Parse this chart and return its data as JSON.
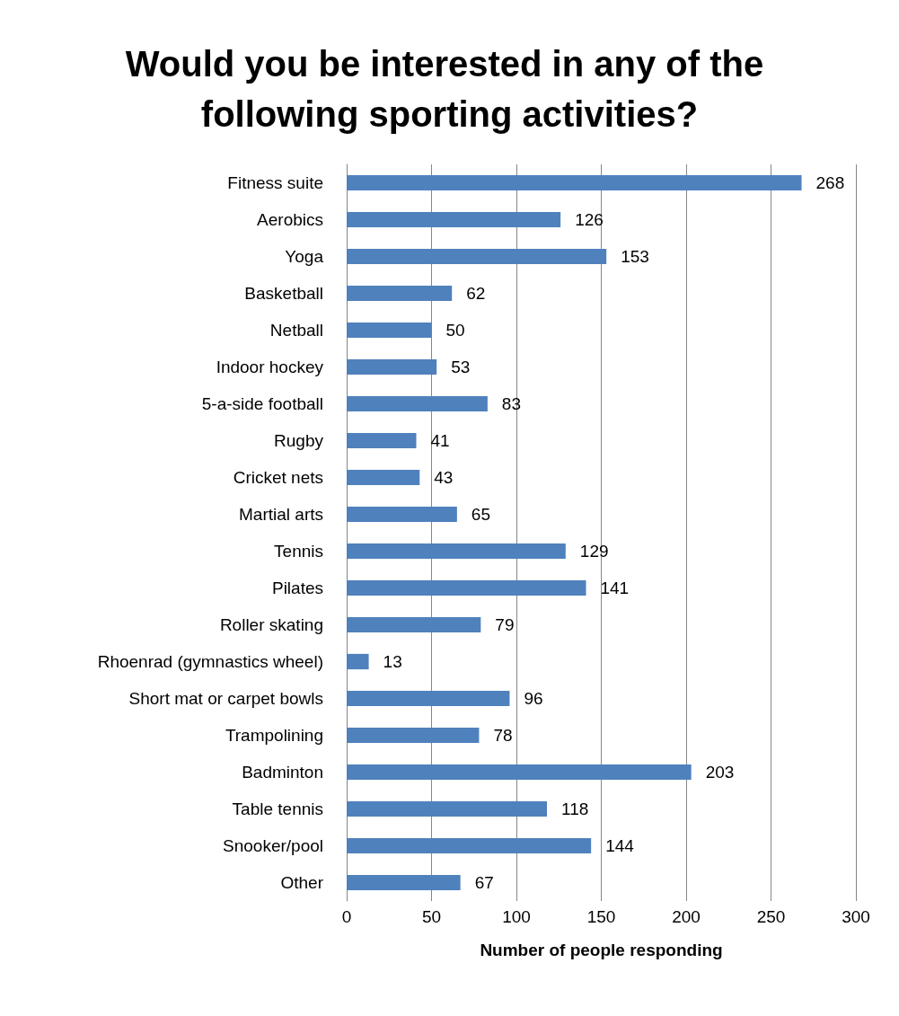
{
  "chart_data": {
    "type": "bar",
    "orientation": "horizontal",
    "title": "Would you be interested in any of the following sporting activities?",
    "xlabel": "Number of people responding",
    "categories": [
      "Fitness suite",
      "Aerobics",
      "Yoga",
      "Basketball",
      "Netball",
      "Indoor hockey",
      "5-a-side football",
      "Rugby",
      "Cricket nets",
      "Martial arts",
      "Tennis",
      "Pilates",
      "Roller skating",
      "Rhoenrad (gymnastics wheel)",
      "Short mat or carpet bowls",
      "Trampolining",
      "Badminton",
      "Table tennis",
      "Snooker/pool",
      "Other"
    ],
    "values": [
      268,
      126,
      153,
      62,
      50,
      53,
      83,
      41,
      43,
      65,
      129,
      141,
      79,
      13,
      96,
      78,
      203,
      118,
      144,
      67
    ],
    "color": "#4f81bd",
    "xlim": [
      0,
      300
    ],
    "xticks": [
      0,
      50,
      100,
      150,
      200,
      250,
      300
    ],
    "grid": "x",
    "data_labels": true
  }
}
